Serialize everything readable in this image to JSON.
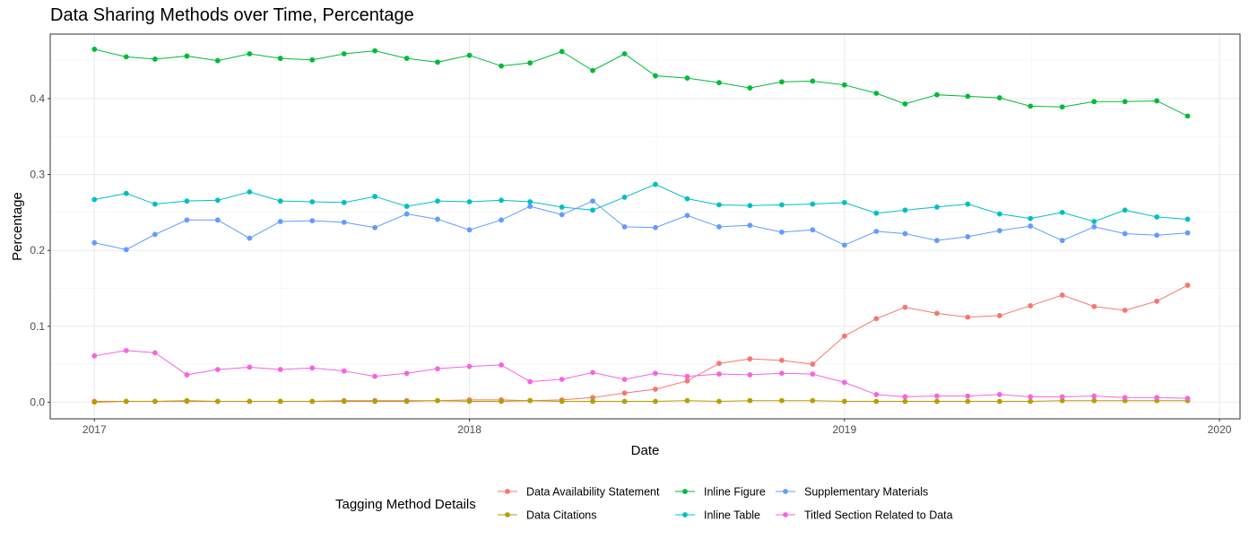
{
  "chart_data": {
    "type": "line",
    "title": "Data Sharing Methods over Time, Percentage",
    "xlabel": "Date",
    "ylabel": "Percentage",
    "legend_title": "Tagging Method Details",
    "legend_position": "bottom",
    "grid": true,
    "x_ticks": [
      "2017",
      "2018",
      "2019",
      "2020"
    ],
    "y_ticks": [
      "0.0",
      "0.1",
      "0.2",
      "0.3",
      "0.4"
    ],
    "xlim": [
      "2016-11-19",
      "2020-01-21"
    ],
    "ylim": [
      -0.022,
      0.485
    ],
    "x": [
      "2017-01",
      "2017-02",
      "2017-03",
      "2017-04",
      "2017-05",
      "2017-06",
      "2017-07",
      "2017-08",
      "2017-09",
      "2017-10",
      "2017-11",
      "2017-12",
      "2018-01",
      "2018-02",
      "2018-03",
      "2018-04",
      "2018-05",
      "2018-06",
      "2018-07",
      "2018-08",
      "2018-09",
      "2018-10",
      "2018-11",
      "2018-12",
      "2019-01",
      "2019-02",
      "2019-03",
      "2019-04",
      "2019-05",
      "2019-06",
      "2019-07",
      "2019-08",
      "2019-09",
      "2019-10",
      "2019-11",
      "2019-12"
    ],
    "series": [
      {
        "name": "Data Availability Statement",
        "color": "#F8766D",
        "values": [
          0.001,
          0.001,
          0.001,
          0.001,
          0.001,
          0.001,
          0.001,
          0.001,
          0.002,
          0.002,
          0.002,
          0.002,
          0.003,
          0.003,
          0.002,
          0.003,
          0.006,
          0.012,
          0.017,
          0.028,
          0.051,
          0.057,
          0.055,
          0.05,
          0.087,
          0.11,
          0.125,
          0.117,
          0.112,
          0.114,
          0.127,
          0.141,
          0.126,
          0.121,
          0.133,
          0.154
        ]
      },
      {
        "name": "Data Citations",
        "color": "#B79F00",
        "values": [
          0.0,
          0.001,
          0.001,
          0.002,
          0.001,
          0.001,
          0.001,
          0.001,
          0.001,
          0.001,
          0.001,
          0.002,
          0.001,
          0.001,
          0.002,
          0.001,
          0.001,
          0.001,
          0.001,
          0.002,
          0.001,
          0.002,
          0.002,
          0.002,
          0.001,
          0.001,
          0.001,
          0.001,
          0.001,
          0.001,
          0.001,
          0.002,
          0.002,
          0.002,
          0.002,
          0.002
        ]
      },
      {
        "name": "Inline Figure",
        "color": "#00BA38",
        "values": [
          0.465,
          0.455,
          0.452,
          0.456,
          0.45,
          0.459,
          0.453,
          0.451,
          0.459,
          0.463,
          0.453,
          0.448,
          0.457,
          0.443,
          0.447,
          0.462,
          0.437,
          0.459,
          0.43,
          0.427,
          0.421,
          0.414,
          0.422,
          0.423,
          0.418,
          0.407,
          0.393,
          0.405,
          0.403,
          0.401,
          0.39,
          0.389,
          0.396,
          0.396,
          0.397,
          0.377
        ]
      },
      {
        "name": "Inline Table",
        "color": "#00BFC4",
        "values": [
          0.267,
          0.275,
          0.261,
          0.265,
          0.266,
          0.277,
          0.265,
          0.264,
          0.263,
          0.271,
          0.258,
          0.265,
          0.264,
          0.266,
          0.264,
          0.257,
          0.253,
          0.27,
          0.287,
          0.268,
          0.26,
          0.259,
          0.26,
          0.261,
          0.263,
          0.249,
          0.253,
          0.257,
          0.261,
          0.248,
          0.242,
          0.25,
          0.238,
          0.253,
          0.244,
          0.241
        ]
      },
      {
        "name": "Supplementary Materials",
        "color": "#619CFF",
        "values": [
          0.21,
          0.201,
          0.221,
          0.24,
          0.24,
          0.216,
          0.238,
          0.239,
          0.237,
          0.23,
          0.248,
          0.241,
          0.227,
          0.24,
          0.258,
          0.247,
          0.265,
          0.231,
          0.23,
          0.246,
          0.231,
          0.233,
          0.224,
          0.227,
          0.207,
          0.225,
          0.222,
          0.213,
          0.218,
          0.226,
          0.232,
          0.213,
          0.231,
          0.222,
          0.22,
          0.223
        ]
      },
      {
        "name": "Titled Section Related to Data",
        "color": "#F564E3",
        "values": [
          0.061,
          0.068,
          0.065,
          0.036,
          0.043,
          0.046,
          0.043,
          0.045,
          0.041,
          0.034,
          0.038,
          0.044,
          0.047,
          0.049,
          0.027,
          0.03,
          0.039,
          0.03,
          0.038,
          0.034,
          0.037,
          0.036,
          0.038,
          0.037,
          0.026,
          0.01,
          0.007,
          0.008,
          0.008,
          0.01,
          0.007,
          0.007,
          0.008,
          0.006,
          0.006,
          0.005
        ]
      }
    ]
  }
}
